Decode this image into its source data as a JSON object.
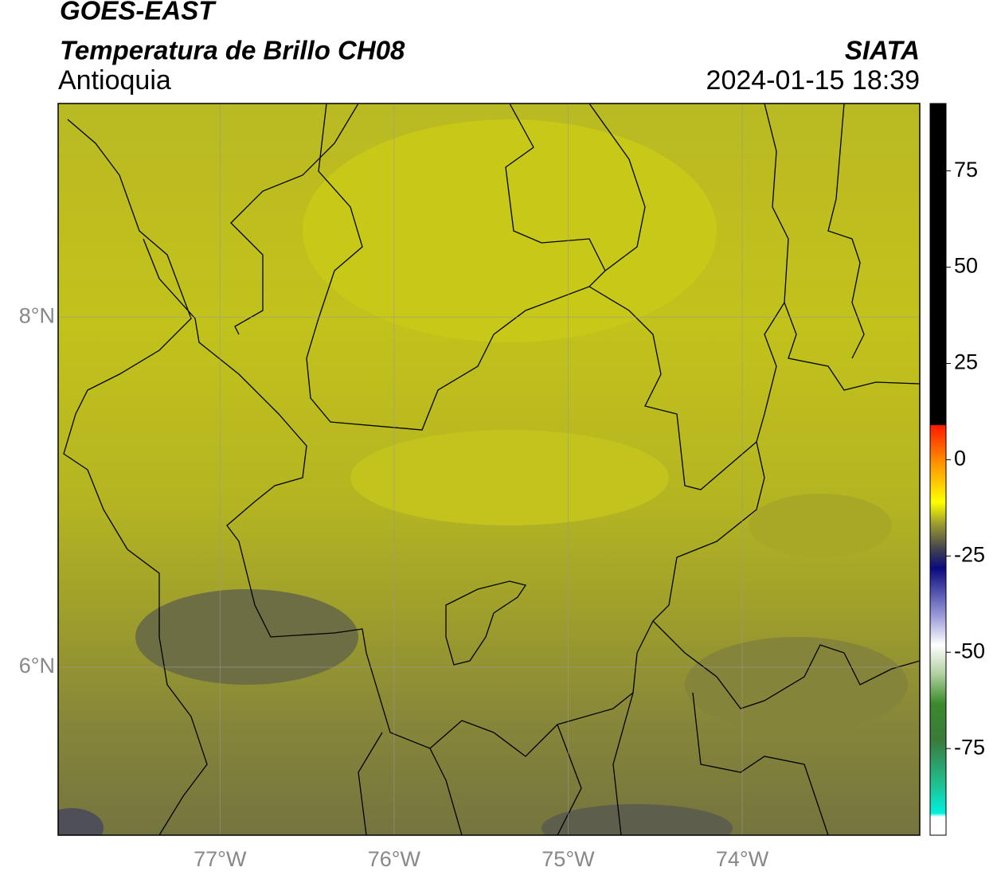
{
  "header": {
    "title": "GOES-EAST",
    "subtitle": "Temperatura de Brillo CH08",
    "region": "Antioquia",
    "source": "SIATA",
    "datetime": "2024-01-15 18:39"
  },
  "map": {
    "xlim": [
      -77.93,
      -72.98
    ],
    "ylim": [
      5.04,
      9.22
    ],
    "xticks": [
      {
        "value": -77,
        "label": "77°W"
      },
      {
        "value": -76,
        "label": "76°W"
      },
      {
        "value": -75,
        "label": "75°W"
      },
      {
        "value": -74,
        "label": "74°W"
      }
    ],
    "yticks": [
      {
        "value": 8,
        "label": "8°N"
      },
      {
        "value": 6,
        "label": "6°N"
      }
    ],
    "grid": true
  },
  "colorbar": {
    "ylim": [
      -97.5,
      92.5
    ],
    "yticks": [
      75,
      50,
      25,
      0,
      -25,
      -50,
      -75
    ]
  }
}
